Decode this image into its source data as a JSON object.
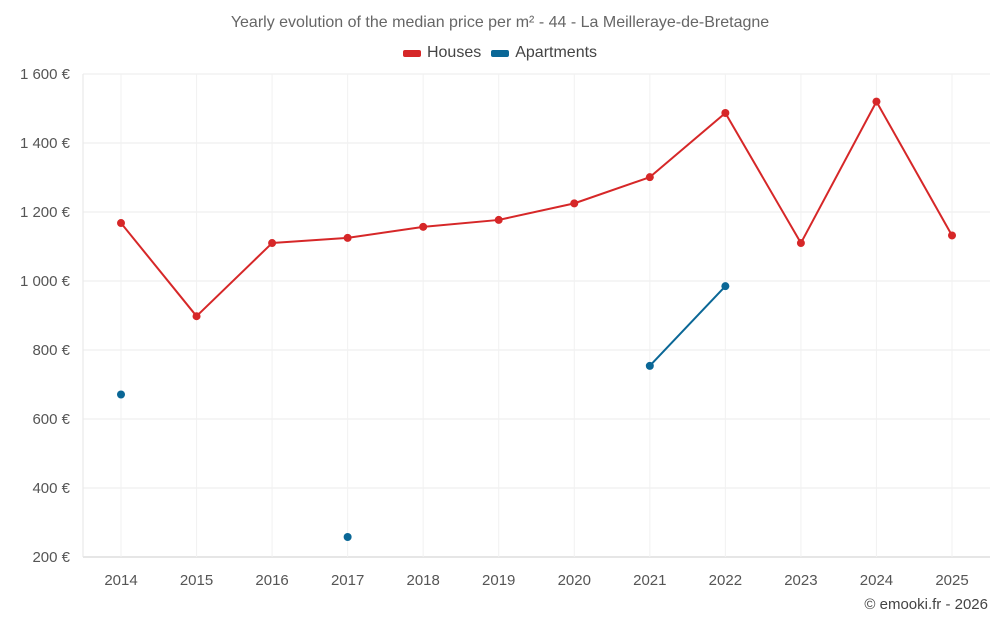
{
  "chart_data": {
    "type": "line",
    "title": "Yearly evolution of the median price per m² - 44 - La Meilleraye-de-Bretagne",
    "xlabel": "",
    "ylabel": "",
    "categories": [
      "2014",
      "2015",
      "2016",
      "2017",
      "2018",
      "2019",
      "2020",
      "2021",
      "2022",
      "2023",
      "2024",
      "2025"
    ],
    "ylim": [
      200,
      1600
    ],
    "yticks": [
      200,
      400,
      600,
      800,
      1000,
      1200,
      1400,
      1600
    ],
    "ytick_labels": [
      "200 €",
      "400 €",
      "600 €",
      "800 €",
      "1 000 €",
      "1 200 €",
      "1 400 €",
      "1 600 €"
    ],
    "grid": true,
    "legend_position": "top-center",
    "series": [
      {
        "name": "Houses",
        "color": "#d62728",
        "values": [
          1168,
          898,
          1110,
          1125,
          1157,
          1177,
          1225,
          1301,
          1487,
          1110,
          1520,
          1132
        ]
      },
      {
        "name": "Apartments",
        "color": "#0a6796",
        "values": [
          671,
          null,
          null,
          258,
          null,
          null,
          null,
          754,
          985,
          null,
          null,
          null
        ]
      }
    ]
  },
  "credit": "© emooki.fr - 2026"
}
